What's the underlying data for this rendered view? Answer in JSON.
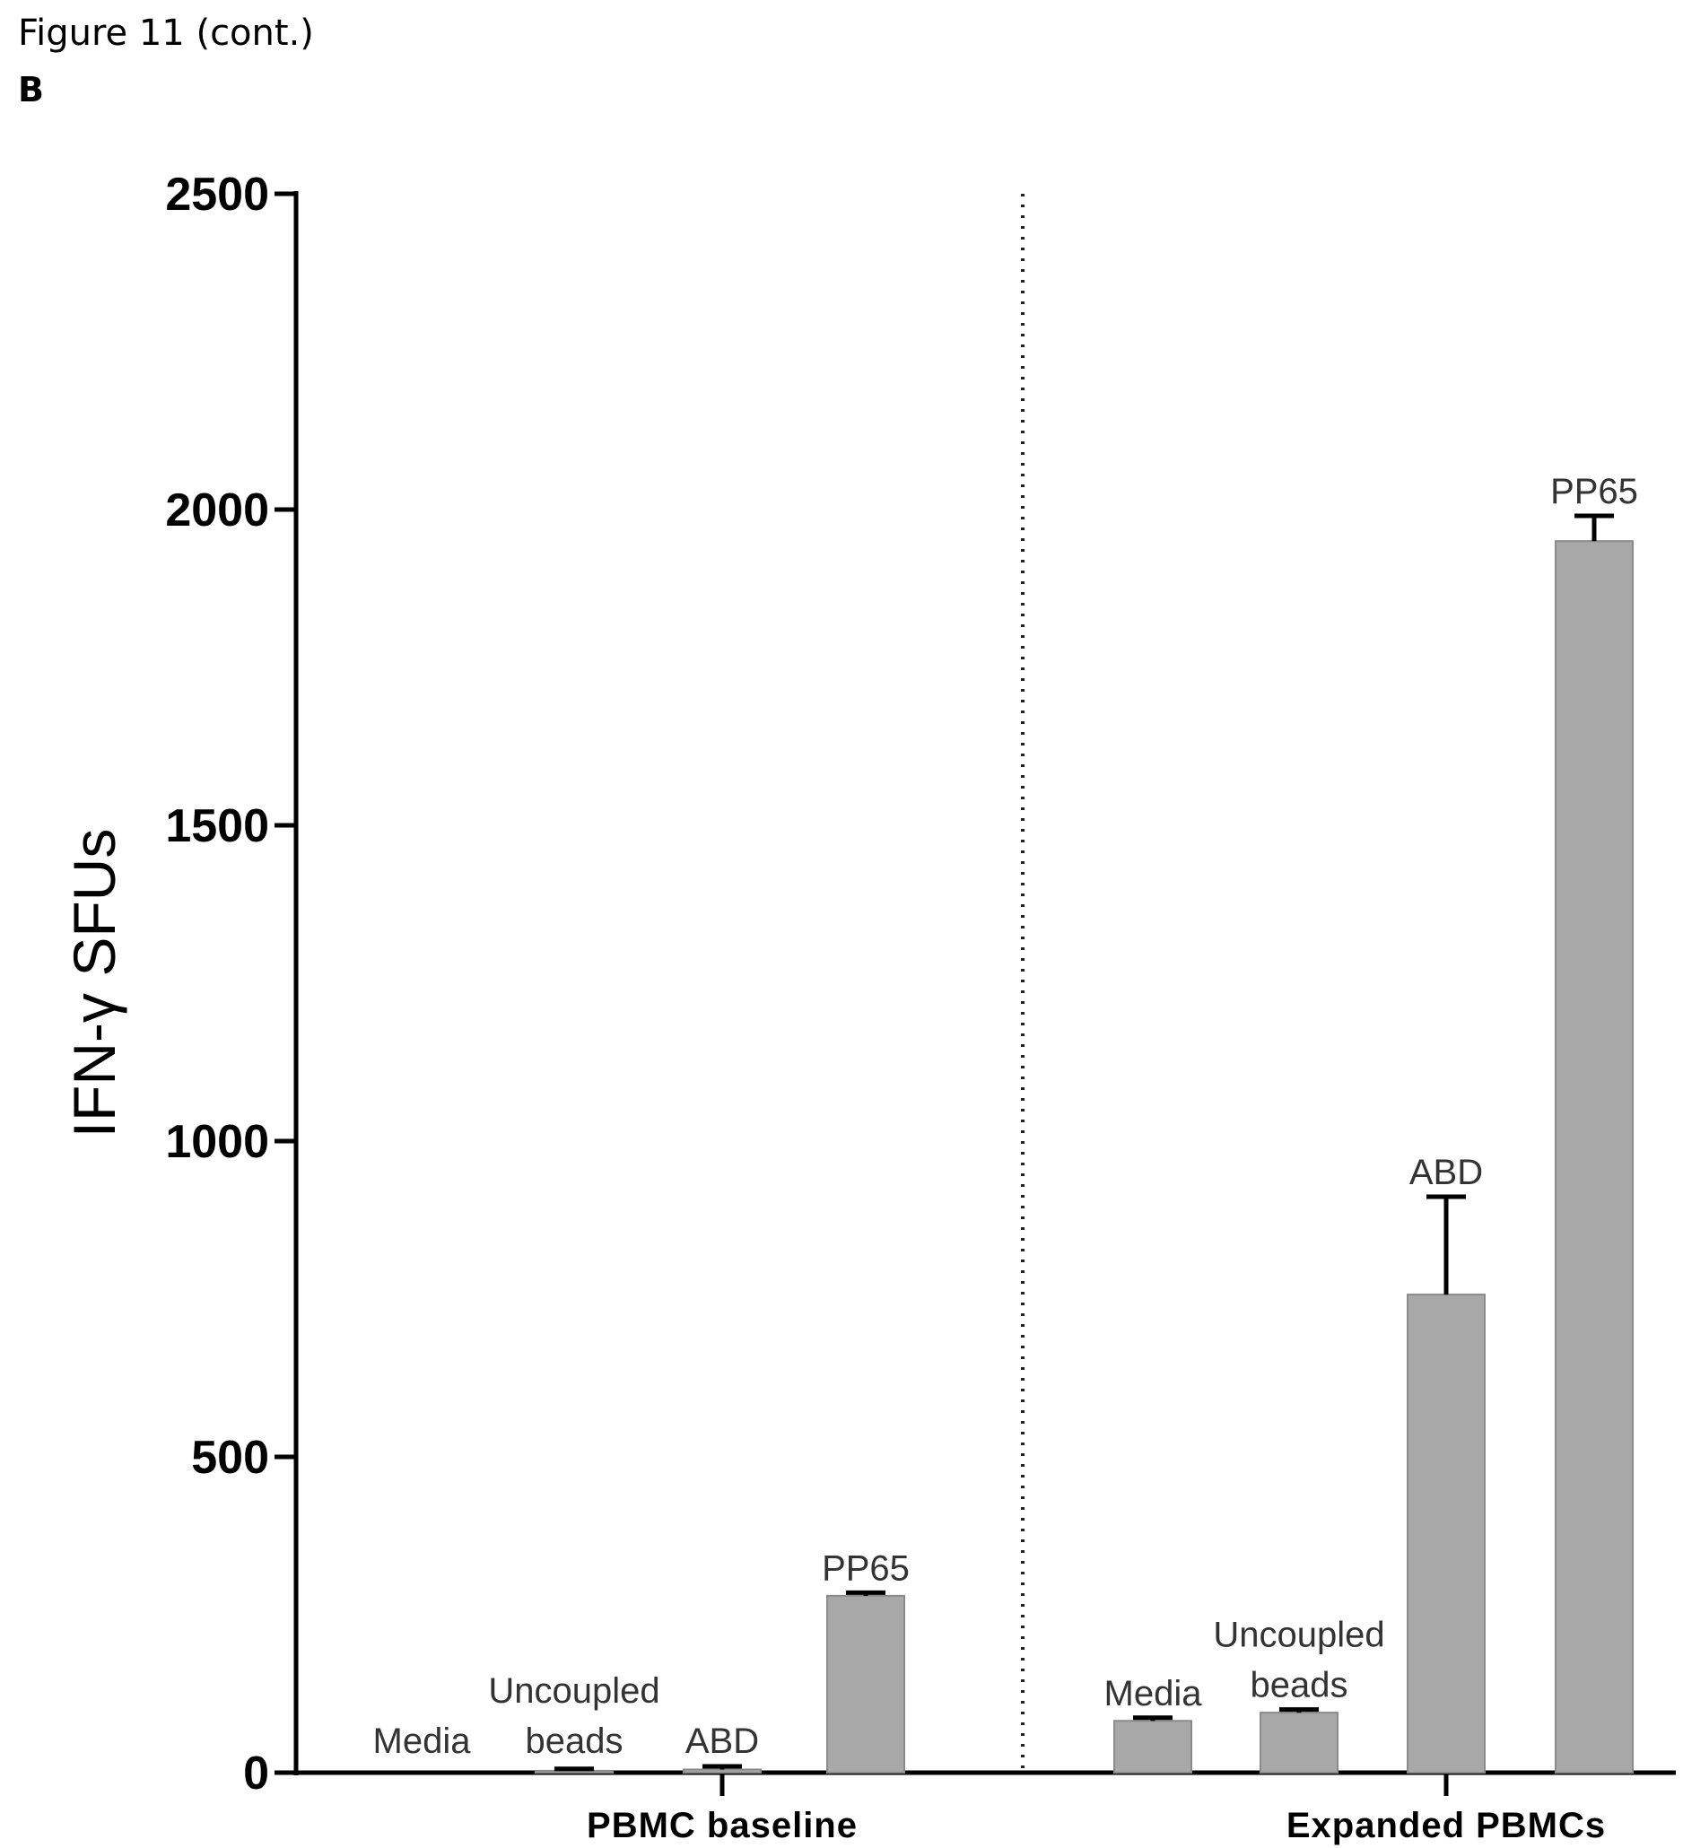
{
  "caption": "Figure 11 (cont.)",
  "panel": "B",
  "chart_data": {
    "type": "bar",
    "ylabel": "IFN-γ SFUs",
    "ylim": [
      0,
      2500
    ],
    "yticks": [
      0,
      500,
      1000,
      1500,
      2000,
      2500
    ],
    "groups": [
      {
        "name": "PBMC baseline",
        "bars": [
          {
            "label": [
              "Media"
            ],
            "value": 0,
            "error": 0
          },
          {
            "label": [
              "Uncoupled",
              "beads"
            ],
            "value": 3,
            "error": 3
          },
          {
            "label": [
              "ABD"
            ],
            "value": 5,
            "error": 5
          },
          {
            "label": [
              "PP65"
            ],
            "value": 280,
            "error": 5
          }
        ]
      },
      {
        "name": "Expanded PBMCs",
        "bars": [
          {
            "label": [
              "Media"
            ],
            "value": 82,
            "error": 5
          },
          {
            "label": [
              "Uncoupled",
              "beads"
            ],
            "value": 95,
            "error": 5
          },
          {
            "label": [
              "ABD"
            ],
            "value": 757,
            "error": 155
          },
          {
            "label": [
              "PP65"
            ],
            "value": 1950,
            "error": 40
          }
        ]
      }
    ],
    "separator": "dotted",
    "bar_color": "#a8a8a8"
  }
}
